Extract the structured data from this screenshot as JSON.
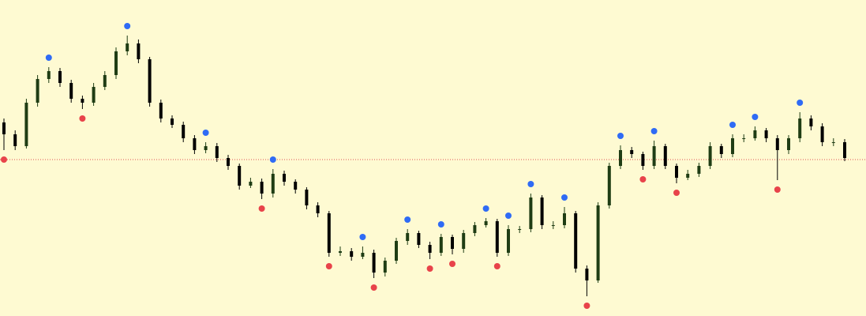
{
  "chart_data": {
    "type": "candlestick",
    "background": "#fefad2",
    "up_color": "#1f3d14",
    "down_color": "#000000",
    "fractal_up_color": "#2f6bf5",
    "fractal_down_color": "#e8434a",
    "reference_line": 198,
    "reference_color": "#e05050",
    "ylim": [
      0,
      400
    ],
    "open": [
      245,
      230,
      215,
      270,
      300,
      310,
      295,
      275,
      270,
      290,
      305,
      335,
      345,
      325,
      270,
      250,
      242,
      225,
      210,
      215,
      200,
      190,
      165,
      170,
      155,
      180,
      170,
      160,
      140,
      130,
      80,
      82,
      75,
      80,
      55,
      70,
      95,
      105,
      90,
      80,
      100,
      85,
      105,
      115,
      120,
      80,
      110,
      110,
      150,
      115,
      115,
      130,
      60,
      45,
      140,
      190,
      210,
      205,
      190,
      215,
      190,
      175,
      180,
      190,
      215,
      205,
      225,
      225,
      235,
      225,
      210,
      225,
      250,
      240,
      220,
      220
    ],
    "high": [
      250,
      235,
      275,
      305,
      315,
      314,
      299,
      279,
      295,
      310,
      340,
      355,
      350,
      328,
      274,
      254,
      246,
      229,
      220,
      219,
      204,
      193,
      175,
      174,
      186,
      184,
      173,
      163,
      144,
      133,
      88,
      86,
      88,
      84,
      74,
      99,
      110,
      108,
      94,
      104,
      103,
      109,
      119,
      124,
      123,
      115,
      114,
      155,
      153,
      120,
      138,
      133,
      64,
      144,
      194,
      216,
      214,
      208,
      222,
      218,
      193,
      185,
      194,
      220,
      218,
      230,
      230,
      240,
      238,
      229,
      229,
      258,
      254,
      244,
      225,
      224
    ],
    "low": [
      210,
      210,
      212,
      265,
      295,
      290,
      270,
      262,
      266,
      286,
      300,
      330,
      320,
      265,
      245,
      238,
      220,
      205,
      206,
      195,
      185,
      160,
      162,
      148,
      150,
      165,
      155,
      135,
      125,
      75,
      76,
      70,
      72,
      48,
      50,
      66,
      90,
      86,
      72,
      76,
      78,
      80,
      101,
      112,
      75,
      76,
      105,
      106,
      110,
      110,
      111,
      55,
      25,
      42,
      136,
      186,
      200,
      185,
      186,
      186,
      168,
      172,
      176,
      186,
      200,
      201,
      220,
      222,
      220,
      172,
      205,
      220,
      235,
      215,
      215,
      196
    ],
    "close": [
      230,
      215,
      270,
      300,
      310,
      295,
      275,
      270,
      290,
      305,
      335,
      345,
      325,
      270,
      250,
      242,
      225,
      210,
      215,
      200,
      190,
      165,
      170,
      155,
      180,
      170,
      160,
      140,
      130,
      80,
      82,
      75,
      80,
      55,
      70,
      95,
      105,
      90,
      80,
      100,
      85,
      105,
      115,
      120,
      80,
      110,
      110,
      150,
      115,
      115,
      130,
      60,
      45,
      140,
      190,
      210,
      205,
      190,
      215,
      190,
      175,
      180,
      190,
      215,
      205,
      225,
      225,
      235,
      225,
      210,
      225,
      250,
      240,
      220,
      220,
      200
    ],
    "fractals_up": [
      {
        "index": 4,
        "value": 315
      },
      {
        "index": 11,
        "value": 355
      },
      {
        "index": 18,
        "value": 220
      },
      {
        "index": 24,
        "value": 186
      },
      {
        "index": 32,
        "value": 88
      },
      {
        "index": 36,
        "value": 110
      },
      {
        "index": 39,
        "value": 104
      },
      {
        "index": 43,
        "value": 124
      },
      {
        "index": 45,
        "value": 115
      },
      {
        "index": 47,
        "value": 155
      },
      {
        "index": 50,
        "value": 138
      },
      {
        "index": 55,
        "value": 216
      },
      {
        "index": 58,
        "value": 222
      },
      {
        "index": 65,
        "value": 230
      },
      {
        "index": 67,
        "value": 240
      },
      {
        "index": 71,
        "value": 258
      }
    ],
    "fractals_down": [
      {
        "index": 0,
        "value": 210
      },
      {
        "index": 7,
        "value": 262
      },
      {
        "index": 23,
        "value": 148
      },
      {
        "index": 29,
        "value": 75
      },
      {
        "index": 33,
        "value": 48
      },
      {
        "index": 38,
        "value": 72
      },
      {
        "index": 40,
        "value": 78
      },
      {
        "index": 44,
        "value": 75
      },
      {
        "index": 52,
        "value": 25
      },
      {
        "index": 57,
        "value": 185
      },
      {
        "index": 60,
        "value": 168
      },
      {
        "index": 69,
        "value": 172
      }
    ]
  }
}
